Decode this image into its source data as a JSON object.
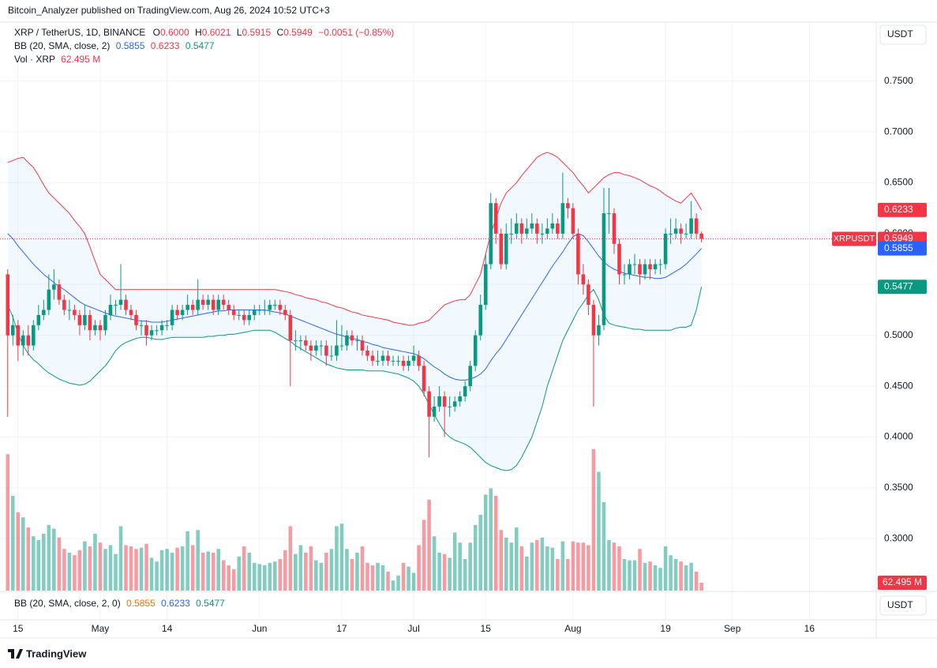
{
  "header": "Bitcoin_Analyzer published on TradingView.com, Aug 26, 2024 10:52 UTC+3",
  "footer": "TradingView",
  "currency": "USDT",
  "legend": {
    "symbol": "XRP / TetherUS, 1D, BINANCE",
    "ohlc": [
      {
        "key": "O",
        "value": "0.6000"
      },
      {
        "key": "H",
        "value": "0.6021"
      },
      {
        "key": "L",
        "value": "0.5915"
      },
      {
        "key": "C",
        "value": "0.5949"
      }
    ],
    "change": "−0.0051 (−0.85%)",
    "bb_title": "BB (20, SMA, close, 2)",
    "bb_values": [
      "0.5855",
      "0.6233",
      "0.5477"
    ],
    "vol_title": "Vol · XRP",
    "vol_value": "62.495 M"
  },
  "bb_pane": {
    "title": "BB (20, SMA, close, 2, 0)",
    "values": [
      "0.5855",
      "0.6233",
      "0.5477"
    ],
    "colors": [
      "#ff6d00",
      "#2962ff",
      "#089981"
    ]
  },
  "chart_data": {
    "type": "candlestick",
    "up_color": "#089981",
    "down_color": "#f23645",
    "xlim": [
      -1.5,
      169
    ],
    "ylim": [
      0.249,
      0.808
    ],
    "volume_ylim": [
      0,
      1200
    ],
    "grid": true,
    "xticks": [
      {
        "value": 2,
        "label": "15"
      },
      {
        "value": 18,
        "label": "May"
      },
      {
        "value": 31,
        "label": "14"
      },
      {
        "value": 49,
        "label": "Jun"
      },
      {
        "value": 65,
        "label": "17"
      },
      {
        "value": 79,
        "label": "Jul"
      },
      {
        "value": 93,
        "label": "15"
      },
      {
        "value": 110,
        "label": "Aug"
      },
      {
        "value": 128,
        "label": "19"
      },
      {
        "value": 141,
        "label": "Sep"
      },
      {
        "value": 156,
        "label": "16"
      }
    ],
    "yticks": [
      {
        "value": 0.75,
        "label": "0.7500"
      },
      {
        "value": 0.7,
        "label": "0.7000"
      },
      {
        "value": 0.65,
        "label": "0.6500"
      },
      {
        "value": 0.6,
        "label": "0.6000"
      },
      {
        "value": 0.55,
        "label": "0.5500"
      },
      {
        "value": 0.5,
        "label": "0.5000"
      },
      {
        "value": 0.45,
        "label": "0.4500"
      },
      {
        "value": 0.4,
        "label": "0.4000"
      },
      {
        "value": 0.35,
        "label": "0.3500"
      },
      {
        "value": 0.3,
        "label": "0.3000"
      }
    ],
    "price_tags": [
      {
        "value": 0.6233,
        "label": "0.6233",
        "color": "#f23645"
      },
      {
        "value": 0.5949,
        "label": "0.5949",
        "color": "#f23645",
        "name": "XRPUSDT"
      },
      {
        "value": 0.5855,
        "label": "0.5855",
        "color": "#2962ff"
      },
      {
        "value": 0.5477,
        "label": "0.5477",
        "color": "#089981"
      }
    ],
    "volume_tag": {
      "value": 62.495,
      "label": "62.495 M",
      "color": "#f23645"
    },
    "bb_colors": [
      "#f23645",
      "#2962ff",
      "#089981"
    ],
    "candles": [
      [
        0.56,
        0.565,
        0.42,
        0.5
      ],
      [
        0.5,
        0.52,
        0.49,
        0.51
      ],
      [
        0.51,
        0.515,
        0.475,
        0.49
      ],
      [
        0.49,
        0.505,
        0.48,
        0.5
      ],
      [
        0.5,
        0.51,
        0.48,
        0.49
      ],
      [
        0.49,
        0.515,
        0.485,
        0.51
      ],
      [
        0.51,
        0.53,
        0.505,
        0.52
      ],
      [
        0.52,
        0.535,
        0.515,
        0.525
      ],
      [
        0.525,
        0.56,
        0.52,
        0.545
      ],
      [
        0.545,
        0.565,
        0.535,
        0.55
      ],
      [
        0.55,
        0.555,
        0.53,
        0.535
      ],
      [
        0.535,
        0.54,
        0.52,
        0.525
      ],
      [
        0.525,
        0.535,
        0.515,
        0.525
      ],
      [
        0.525,
        0.53,
        0.515,
        0.52
      ],
      [
        0.52,
        0.525,
        0.5,
        0.51
      ],
      [
        0.51,
        0.53,
        0.505,
        0.52
      ],
      [
        0.52,
        0.525,
        0.495,
        0.505
      ],
      [
        0.505,
        0.515,
        0.5,
        0.51
      ],
      [
        0.51,
        0.515,
        0.495,
        0.505
      ],
      [
        0.505,
        0.525,
        0.5,
        0.52
      ],
      [
        0.52,
        0.54,
        0.515,
        0.53
      ],
      [
        0.53,
        0.535,
        0.52,
        0.53
      ],
      [
        0.53,
        0.57,
        0.525,
        0.535
      ],
      [
        0.535,
        0.54,
        0.52,
        0.525
      ],
      [
        0.525,
        0.53,
        0.515,
        0.52
      ],
      [
        0.52,
        0.525,
        0.505,
        0.51
      ],
      [
        0.51,
        0.515,
        0.5,
        0.51
      ],
      [
        0.51,
        0.515,
        0.49,
        0.5
      ],
      [
        0.5,
        0.51,
        0.495,
        0.505
      ],
      [
        0.505,
        0.51,
        0.5,
        0.505
      ],
      [
        0.505,
        0.515,
        0.5,
        0.51
      ],
      [
        0.51,
        0.515,
        0.505,
        0.51
      ],
      [
        0.51,
        0.53,
        0.505,
        0.525
      ],
      [
        0.525,
        0.53,
        0.515,
        0.52
      ],
      [
        0.52,
        0.53,
        0.515,
        0.525
      ],
      [
        0.525,
        0.54,
        0.52,
        0.53
      ],
      [
        0.53,
        0.535,
        0.52,
        0.525
      ],
      [
        0.525,
        0.555,
        0.52,
        0.535
      ],
      [
        0.535,
        0.54,
        0.525,
        0.53
      ],
      [
        0.53,
        0.54,
        0.525,
        0.535
      ],
      [
        0.535,
        0.54,
        0.52,
        0.525
      ],
      [
        0.525,
        0.54,
        0.52,
        0.535
      ],
      [
        0.535,
        0.54,
        0.525,
        0.53
      ],
      [
        0.53,
        0.535,
        0.52,
        0.525
      ],
      [
        0.525,
        0.53,
        0.515,
        0.52
      ],
      [
        0.52,
        0.525,
        0.515,
        0.52
      ],
      [
        0.52,
        0.525,
        0.51,
        0.515
      ],
      [
        0.515,
        0.525,
        0.51,
        0.52
      ],
      [
        0.52,
        0.53,
        0.515,
        0.525
      ],
      [
        0.525,
        0.53,
        0.52,
        0.525
      ],
      [
        0.525,
        0.535,
        0.52,
        0.525
      ],
      [
        0.525,
        0.535,
        0.52,
        0.53
      ],
      [
        0.53,
        0.535,
        0.525,
        0.53
      ],
      [
        0.53,
        0.535,
        0.52,
        0.525
      ],
      [
        0.525,
        0.53,
        0.515,
        0.52
      ],
      [
        0.52,
        0.525,
        0.45,
        0.495
      ],
      [
        0.495,
        0.505,
        0.485,
        0.495
      ],
      [
        0.495,
        0.5,
        0.485,
        0.495
      ],
      [
        0.495,
        0.5,
        0.485,
        0.49
      ],
      [
        0.49,
        0.495,
        0.475,
        0.485
      ],
      [
        0.485,
        0.495,
        0.48,
        0.49
      ],
      [
        0.49,
        0.495,
        0.48,
        0.49
      ],
      [
        0.49,
        0.495,
        0.47,
        0.48
      ],
      [
        0.48,
        0.49,
        0.475,
        0.48
      ],
      [
        0.48,
        0.515,
        0.475,
        0.49
      ],
      [
        0.49,
        0.51,
        0.485,
        0.49
      ],
      [
        0.49,
        0.505,
        0.485,
        0.5
      ],
      [
        0.5,
        0.505,
        0.49,
        0.495
      ],
      [
        0.495,
        0.5,
        0.485,
        0.495
      ],
      [
        0.495,
        0.5,
        0.48,
        0.485
      ],
      [
        0.485,
        0.49,
        0.475,
        0.48
      ],
      [
        0.48,
        0.485,
        0.47,
        0.475
      ],
      [
        0.475,
        0.485,
        0.47,
        0.475
      ],
      [
        0.475,
        0.485,
        0.47,
        0.48
      ],
      [
        0.48,
        0.485,
        0.47,
        0.475
      ],
      [
        0.475,
        0.48,
        0.47,
        0.475
      ],
      [
        0.475,
        0.48,
        0.47,
        0.475
      ],
      [
        0.475,
        0.48,
        0.465,
        0.47
      ],
      [
        0.47,
        0.48,
        0.465,
        0.475
      ],
      [
        0.475,
        0.49,
        0.47,
        0.48
      ],
      [
        0.48,
        0.485,
        0.465,
        0.47
      ],
      [
        0.47,
        0.475,
        0.44,
        0.445
      ],
      [
        0.445,
        0.45,
        0.38,
        0.42
      ],
      [
        0.42,
        0.44,
        0.415,
        0.43
      ],
      [
        0.43,
        0.45,
        0.425,
        0.44
      ],
      [
        0.44,
        0.445,
        0.4,
        0.43
      ],
      [
        0.43,
        0.44,
        0.42,
        0.43
      ],
      [
        0.43,
        0.44,
        0.425,
        0.435
      ],
      [
        0.435,
        0.445,
        0.43,
        0.44
      ],
      [
        0.44,
        0.455,
        0.435,
        0.45
      ],
      [
        0.45,
        0.475,
        0.445,
        0.47
      ],
      [
        0.47,
        0.505,
        0.465,
        0.5
      ],
      [
        0.5,
        0.54,
        0.495,
        0.53
      ],
      [
        0.53,
        0.58,
        0.525,
        0.57
      ],
      [
        0.57,
        0.64,
        0.565,
        0.63
      ],
      [
        0.63,
        0.635,
        0.59,
        0.6
      ],
      [
        0.6,
        0.605,
        0.565,
        0.57
      ],
      [
        0.57,
        0.61,
        0.565,
        0.6
      ],
      [
        0.6,
        0.615,
        0.59,
        0.6
      ],
      [
        0.6,
        0.62,
        0.595,
        0.61
      ],
      [
        0.61,
        0.615,
        0.59,
        0.6
      ],
      [
        0.6,
        0.615,
        0.595,
        0.605
      ],
      [
        0.605,
        0.62,
        0.6,
        0.61
      ],
      [
        0.61,
        0.615,
        0.59,
        0.6
      ],
      [
        0.6,
        0.61,
        0.59,
        0.6
      ],
      [
        0.6,
        0.615,
        0.595,
        0.605
      ],
      [
        0.605,
        0.62,
        0.6,
        0.61
      ],
      [
        0.61,
        0.615,
        0.595,
        0.6
      ],
      [
        0.6,
        0.66,
        0.595,
        0.63
      ],
      [
        0.63,
        0.635,
        0.615,
        0.625
      ],
      [
        0.625,
        0.63,
        0.595,
        0.6
      ],
      [
        0.6,
        0.605,
        0.55,
        0.56
      ],
      [
        0.56,
        0.57,
        0.54,
        0.55
      ],
      [
        0.55,
        0.555,
        0.52,
        0.53
      ],
      [
        0.53,
        0.535,
        0.43,
        0.5
      ],
      [
        0.5,
        0.52,
        0.49,
        0.51
      ],
      [
        0.51,
        0.645,
        0.505,
        0.62
      ],
      [
        0.62,
        0.645,
        0.6,
        0.62
      ],
      [
        0.62,
        0.625,
        0.58,
        0.59
      ],
      [
        0.59,
        0.595,
        0.55,
        0.56
      ],
      [
        0.56,
        0.57,
        0.55,
        0.56
      ],
      [
        0.56,
        0.575,
        0.555,
        0.57
      ],
      [
        0.57,
        0.58,
        0.56,
        0.57
      ],
      [
        0.57,
        0.575,
        0.55,
        0.56
      ],
      [
        0.56,
        0.575,
        0.555,
        0.57
      ],
      [
        0.57,
        0.575,
        0.555,
        0.565
      ],
      [
        0.565,
        0.575,
        0.56,
        0.57
      ],
      [
        0.57,
        0.575,
        0.56,
        0.57
      ],
      [
        0.57,
        0.605,
        0.565,
        0.6
      ],
      [
        0.6,
        0.615,
        0.59,
        0.6
      ],
      [
        0.6,
        0.615,
        0.595,
        0.605
      ],
      [
        0.605,
        0.61,
        0.59,
        0.6
      ],
      [
        0.6,
        0.61,
        0.595,
        0.6
      ],
      [
        0.6,
        0.632,
        0.595,
        0.615
      ],
      [
        0.615,
        0.62,
        0.595,
        0.6
      ],
      [
        0.6,
        0.6021,
        0.5915,
        0.5949
      ]
    ],
    "volumes": [
      1080,
      750,
      620,
      580,
      500,
      430,
      400,
      450,
      520,
      490,
      420,
      330,
      300,
      280,
      320,
      390,
      350,
      450,
      380,
      330,
      360,
      290,
      510,
      360,
      350,
      330,
      340,
      370,
      260,
      230,
      320,
      330,
      300,
      340,
      350,
      470,
      360,
      480,
      300,
      310,
      300,
      330,
      240,
      200,
      170,
      270,
      350,
      300,
      220,
      210,
      200,
      220,
      230,
      250,
      320,
      510,
      290,
      360,
      300,
      350,
      240,
      220,
      300,
      330,
      510,
      530,
      330,
      250,
      300,
      350,
      220,
      200,
      220,
      200,
      150,
      80,
      120,
      220,
      190,
      140,
      360,
      560,
      720,
      430,
      300,
      290,
      260,
      460,
      380,
      250,
      380,
      520,
      600,
      760,
      810,
      750,
      480,
      420,
      380,
      500,
      350,
      270,
      380,
      400,
      420,
      350,
      340,
      250,
      390,
      250,
      390,
      380,
      380,
      360,
      1120,
      940,
      700,
      400,
      380,
      350,
      250,
      240,
      240,
      330,
      220,
      230,
      200,
      180,
      350,
      280,
      250,
      230,
      200,
      220,
      150,
      62.495
    ],
    "bb_upper": [
      0.67,
      0.672,
      0.674,
      0.675,
      0.67,
      0.665,
      0.657,
      0.648,
      0.64,
      0.635,
      0.63,
      0.625,
      0.62,
      0.613,
      0.607,
      0.6,
      0.587,
      0.573,
      0.56,
      0.555,
      0.55,
      0.545,
      0.545,
      0.545,
      0.545,
      0.545,
      0.545,
      0.545,
      0.545,
      0.545,
      0.545,
      0.545,
      0.545,
      0.545,
      0.545,
      0.545,
      0.545,
      0.545,
      0.545,
      0.545,
      0.545,
      0.545,
      0.545,
      0.545,
      0.545,
      0.545,
      0.545,
      0.545,
      0.545,
      0.545,
      0.545,
      0.545,
      0.545,
      0.544,
      0.543,
      0.542,
      0.54,
      0.539,
      0.537,
      0.536,
      0.535,
      0.533,
      0.532,
      0.53,
      0.528,
      0.527,
      0.525,
      0.523,
      0.522,
      0.52,
      0.519,
      0.518,
      0.517,
      0.516,
      0.515,
      0.513,
      0.512,
      0.511,
      0.51,
      0.51,
      0.512,
      0.513,
      0.515,
      0.52,
      0.525,
      0.53,
      0.532,
      0.534,
      0.535,
      0.535,
      0.54,
      0.55,
      0.56,
      0.58,
      0.6,
      0.615,
      0.63,
      0.64,
      0.645,
      0.65,
      0.657,
      0.663,
      0.669,
      0.675,
      0.678,
      0.68,
      0.678,
      0.675,
      0.67,
      0.665,
      0.66,
      0.653,
      0.647,
      0.64,
      0.645,
      0.65,
      0.655,
      0.658,
      0.66,
      0.66,
      0.658,
      0.657,
      0.655,
      0.653,
      0.65,
      0.647,
      0.645,
      0.642,
      0.638,
      0.635,
      0.632,
      0.63,
      0.635,
      0.64,
      0.632,
      0.6233
    ],
    "bb_basis": [
      0.6,
      0.595,
      0.588,
      0.582,
      0.576,
      0.57,
      0.565,
      0.56,
      0.556,
      0.552,
      0.548,
      0.545,
      0.541,
      0.537,
      0.533,
      0.53,
      0.528,
      0.526,
      0.524,
      0.522,
      0.52,
      0.519,
      0.518,
      0.517,
      0.516,
      0.515,
      0.514,
      0.514,
      0.513,
      0.513,
      0.513,
      0.514,
      0.515,
      0.516,
      0.517,
      0.518,
      0.519,
      0.52,
      0.521,
      0.522,
      0.523,
      0.524,
      0.524,
      0.525,
      0.525,
      0.525,
      0.525,
      0.525,
      0.525,
      0.525,
      0.525,
      0.524,
      0.523,
      0.522,
      0.521,
      0.519,
      0.517,
      0.515,
      0.513,
      0.511,
      0.509,
      0.507,
      0.505,
      0.503,
      0.501,
      0.5,
      0.498,
      0.497,
      0.496,
      0.494,
      0.493,
      0.491,
      0.49,
      0.488,
      0.487,
      0.486,
      0.485,
      0.484,
      0.483,
      0.482,
      0.48,
      0.477,
      0.473,
      0.469,
      0.466,
      0.462,
      0.459,
      0.457,
      0.456,
      0.456,
      0.457,
      0.459,
      0.462,
      0.467,
      0.475,
      0.482,
      0.488,
      0.496,
      0.504,
      0.512,
      0.52,
      0.528,
      0.536,
      0.544,
      0.552,
      0.56,
      0.568,
      0.575,
      0.582,
      0.59,
      0.597,
      0.6,
      0.598,
      0.592,
      0.585,
      0.578,
      0.572,
      0.568,
      0.565,
      0.563,
      0.561,
      0.56,
      0.559,
      0.558,
      0.557,
      0.557,
      0.556,
      0.556,
      0.557,
      0.56,
      0.563,
      0.566,
      0.57,
      0.575,
      0.58,
      0.5855
    ],
    "bb_lower": [
      0.53,
      0.518,
      0.502,
      0.49,
      0.482,
      0.476,
      0.472,
      0.467,
      0.463,
      0.46,
      0.457,
      0.455,
      0.453,
      0.452,
      0.451,
      0.452,
      0.455,
      0.46,
      0.465,
      0.47,
      0.477,
      0.485,
      0.49,
      0.493,
      0.495,
      0.497,
      0.498,
      0.498,
      0.497,
      0.496,
      0.496,
      0.497,
      0.498,
      0.498,
      0.498,
      0.498,
      0.498,
      0.498,
      0.498,
      0.499,
      0.499,
      0.5,
      0.5,
      0.501,
      0.501,
      0.502,
      0.503,
      0.504,
      0.505,
      0.505,
      0.505,
      0.505,
      0.503,
      0.5,
      0.497,
      0.494,
      0.49,
      0.487,
      0.484,
      0.481,
      0.478,
      0.475,
      0.472,
      0.47,
      0.468,
      0.467,
      0.466,
      0.466,
      0.466,
      0.466,
      0.465,
      0.465,
      0.465,
      0.465,
      0.464,
      0.463,
      0.462,
      0.46,
      0.458,
      0.455,
      0.45,
      0.442,
      0.432,
      0.422,
      0.413,
      0.405,
      0.4,
      0.397,
      0.395,
      0.393,
      0.39,
      0.385,
      0.38,
      0.375,
      0.372,
      0.37,
      0.368,
      0.367,
      0.368,
      0.372,
      0.38,
      0.39,
      0.4,
      0.415,
      0.43,
      0.45,
      0.465,
      0.48,
      0.495,
      0.505,
      0.515,
      0.525,
      0.532,
      0.54,
      0.545,
      0.535,
      0.52,
      0.512,
      0.51,
      0.509,
      0.508,
      0.507,
      0.506,
      0.506,
      0.505,
      0.505,
      0.505,
      0.505,
      0.505,
      0.505,
      0.507,
      0.508,
      0.508,
      0.51,
      0.525,
      0.5477
    ]
  }
}
